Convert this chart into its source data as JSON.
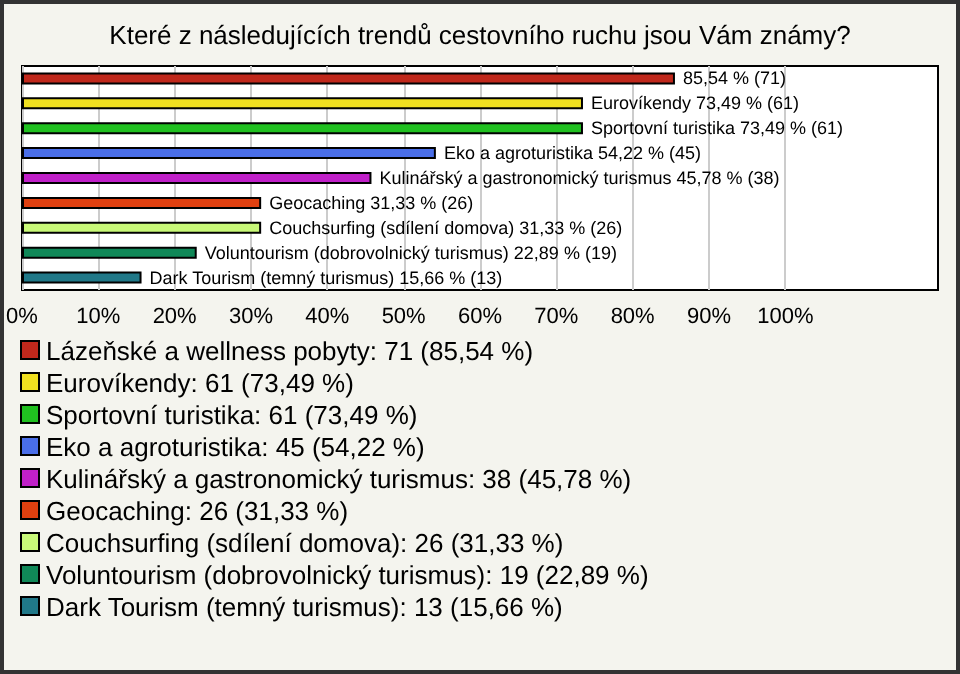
{
  "chart_data": {
    "type": "bar",
    "orientation": "horizontal",
    "title": "Které z následujících trendů cestovního ruchu jsou Vám známy?",
    "categories": [
      null,
      null,
      null,
      null,
      null,
      null,
      null,
      null,
      null
    ],
    "values": [
      85.54,
      73.49,
      73.49,
      54.22,
      45.78,
      31.33,
      31.33,
      22.89,
      15.66
    ],
    "colors": [
      "#c0281c",
      "#f0e020",
      "#20c020",
      "#4a6ee8",
      "#c020c8",
      "#e04010",
      "#c8f878",
      "#108858",
      "#207888"
    ],
    "value_labels": [
      "85,54 % (71)",
      "Eurovíkendy 73,49 % (61)",
      "Sportovní turistika 73,49 % (61)",
      "Eko a agroturistika 54,22 % (45)",
      "Kulinářský a gastronomický turismus 45,78 % (38)",
      "Geocaching 31,33 % (26)",
      "Couchsurfing (sdílení domova) 31,33 % (26)",
      "Voluntourism (dobrovolnický turismus) 22,89 % (19)",
      "Dark Tourism (temný turismus) 15,66 % (13)"
    ],
    "xlim": [
      0,
      120
    ],
    "xticks": [
      {
        "value": 0,
        "label": "0%"
      },
      {
        "value": 10,
        "label": "10%"
      },
      {
        "value": 20,
        "label": "20%"
      },
      {
        "value": 30,
        "label": "30%"
      },
      {
        "value": 40,
        "label": "40%"
      },
      {
        "value": 50,
        "label": "50%"
      },
      {
        "value": 60,
        "label": "60%"
      },
      {
        "value": 70,
        "label": "70%"
      },
      {
        "value": 80,
        "label": "80%"
      },
      {
        "value": 90,
        "label": "90%"
      },
      {
        "value": 100,
        "label": "100%"
      }
    ],
    "grid": "x",
    "annotations": [
      "Lázeňské a wellness pobyty: 71 (85,54 %)",
      "Eurovíkendy: 61 (73,49 %)",
      "Sportovní turistika: 61 (73,49 %)",
      "Eko a agroturistika: 45 (54,22 %)",
      "Kulinářský a gastronomický turismus: 38 (45,78 %)",
      "Geocaching: 26 (31,33 %)",
      "Couchsurfing (sdílení domova): 26 (31,33 %)",
      "Voluntourism (dobrovolnický turismus): 19 (22,89 %)",
      "Dark Tourism (temný turismus): 13 (15,66 %)"
    ]
  }
}
